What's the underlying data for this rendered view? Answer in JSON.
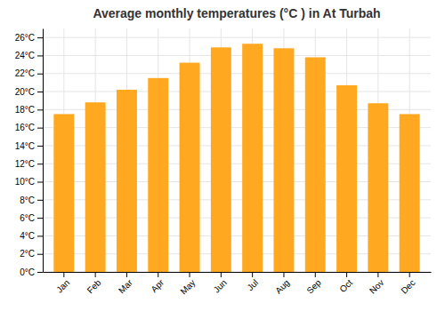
{
  "chart_data": {
    "type": "bar",
    "title": "Average monthly temperatures (°C ) in At Turbah",
    "categories": [
      "Jan",
      "Feb",
      "Mar",
      "Apr",
      "May",
      "Jun",
      "Jul",
      "Aug",
      "Sep",
      "Oct",
      "Nov",
      "Dec"
    ],
    "values": [
      17.5,
      18.8,
      20.2,
      21.5,
      23.2,
      24.9,
      25.3,
      24.8,
      23.8,
      20.7,
      18.7,
      17.5
    ],
    "color": "#FFA820",
    "ylim": [
      0,
      27
    ],
    "yticks": [
      {
        "value": 0,
        "label": "0°C"
      },
      {
        "value": 2,
        "label": "2°C"
      },
      {
        "value": 4,
        "label": "4°C"
      },
      {
        "value": 6,
        "label": "6°C"
      },
      {
        "value": 8,
        "label": "8°C"
      },
      {
        "value": 10,
        "label": "10°C"
      },
      {
        "value": 12,
        "label": "12°C"
      },
      {
        "value": 14,
        "label": "14°C"
      },
      {
        "value": 16,
        "label": "16°C"
      },
      {
        "value": 18,
        "label": "18°C"
      },
      {
        "value": 20,
        "label": "20°C"
      },
      {
        "value": 22,
        "label": "22°C"
      },
      {
        "value": 24,
        "label": "24°C"
      },
      {
        "value": 26,
        "label": "26°C"
      }
    ],
    "grid": true
  }
}
